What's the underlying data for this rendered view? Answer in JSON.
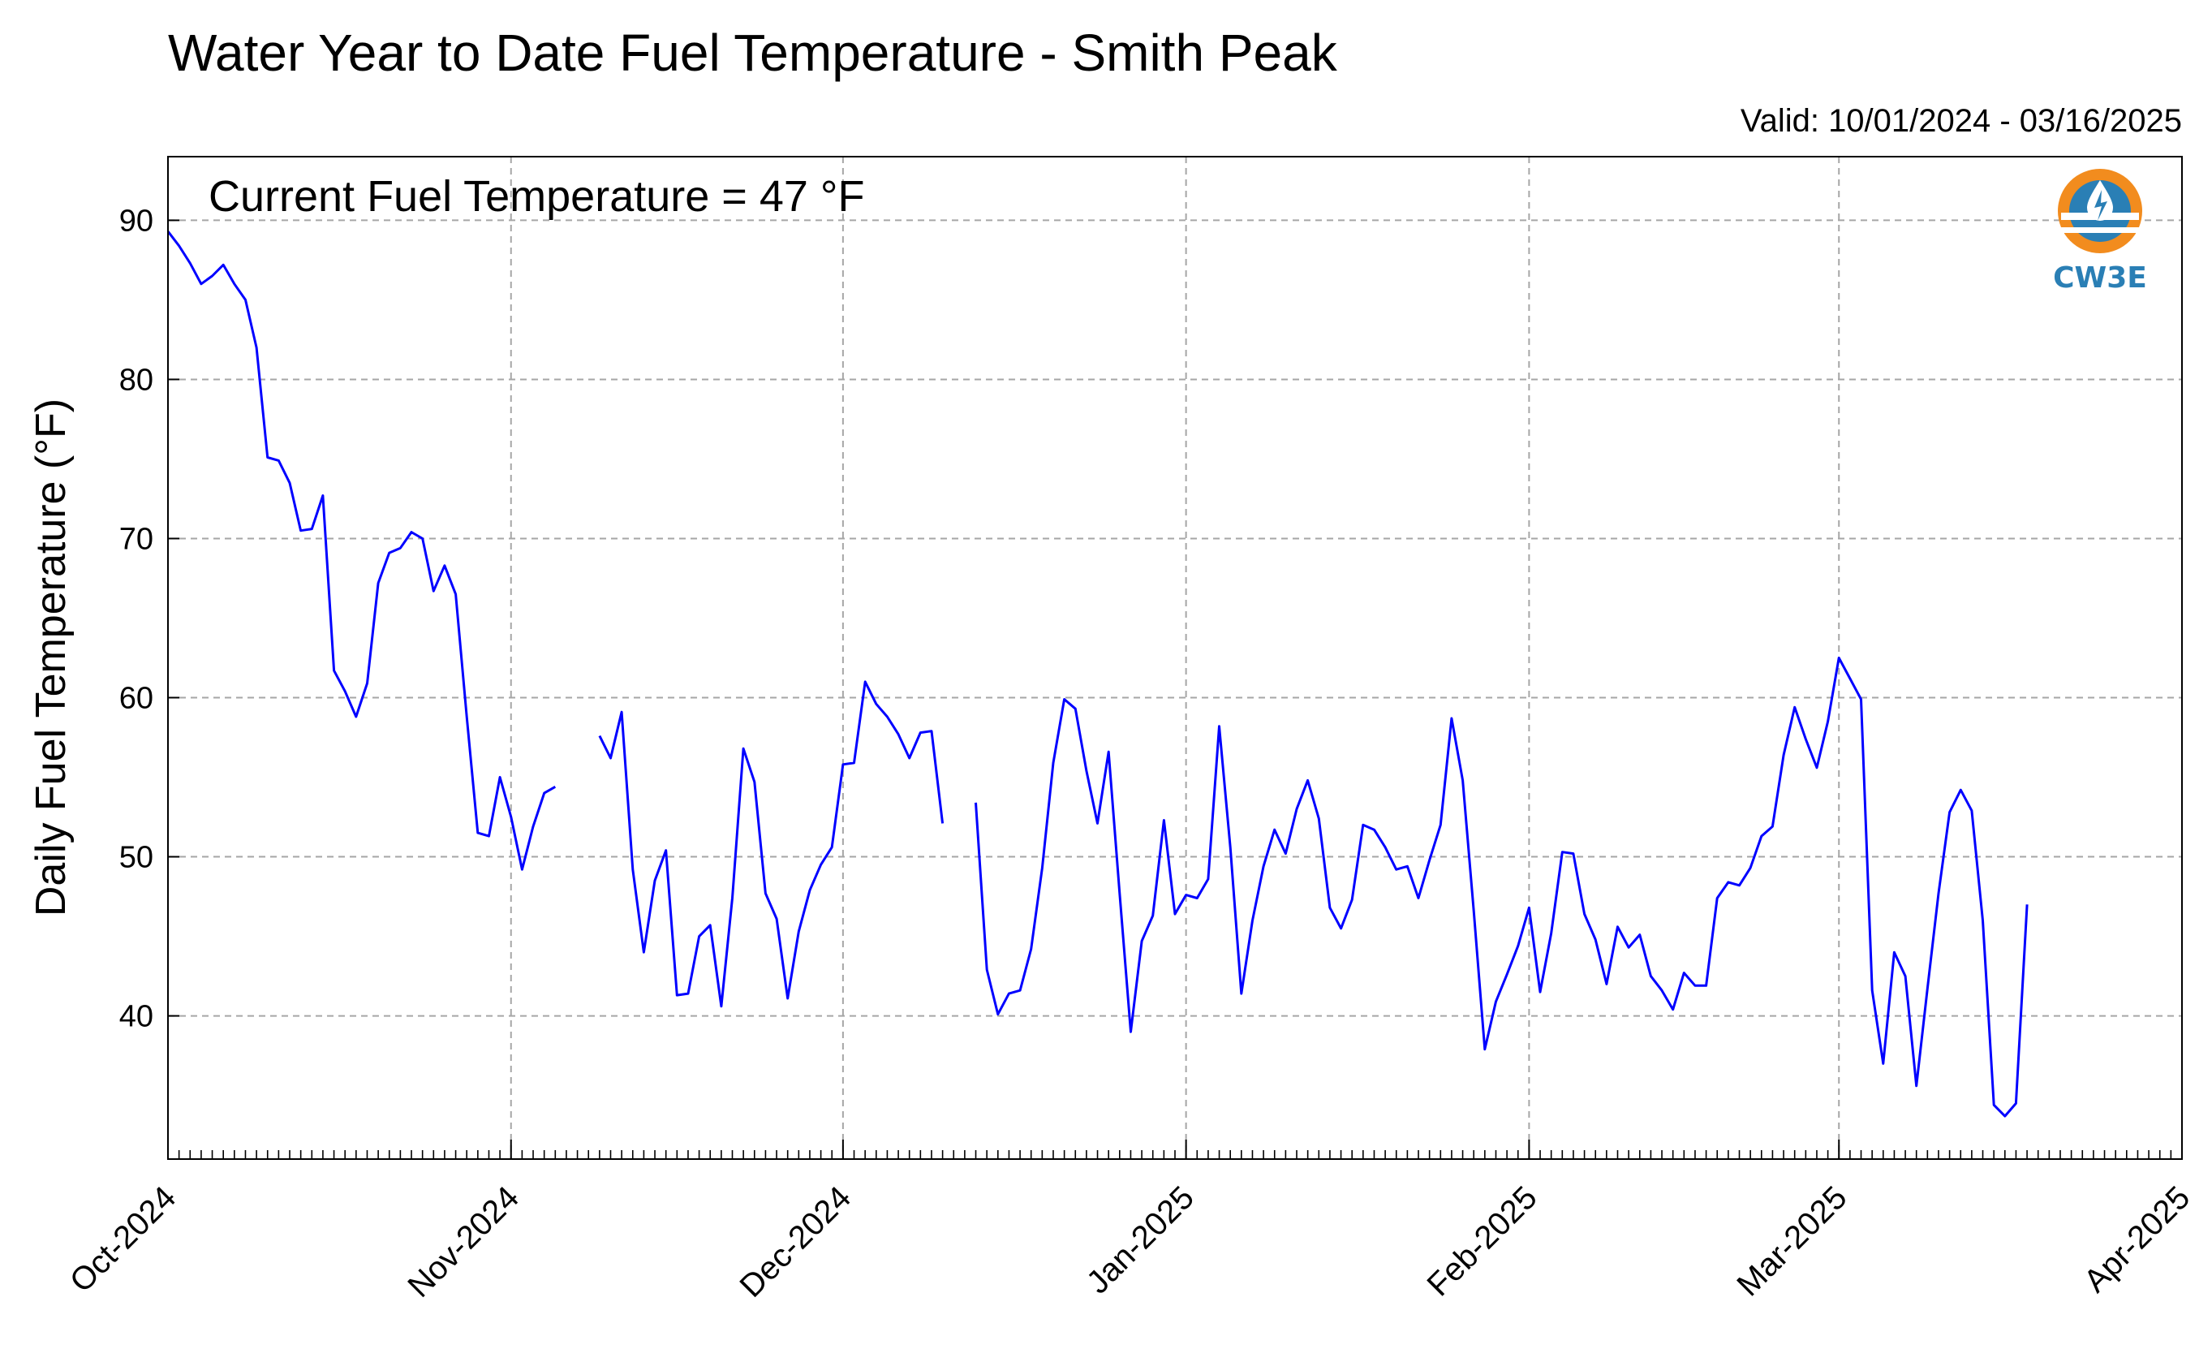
{
  "chart_data": {
    "type": "line",
    "title": "Water Year to Date Fuel Temperature - Smith Peak",
    "subtitle": "Valid: 10/01/2024 - 03/16/2025",
    "annotation": "Current Fuel Temperature = 47 °F",
    "ylabel": "Daily Fuel Temperature (°F)",
    "xlabel": "",
    "ylim": [
      31,
      94
    ],
    "xlim": [
      "2024-10-01",
      "2025-04-01"
    ],
    "yticks": [
      40,
      50,
      60,
      70,
      80,
      90
    ],
    "xtick_labels": [
      "Oct-2024",
      "Nov-2024",
      "Dec-2024",
      "Jan-2025",
      "Feb-2025",
      "Mar-2025",
      "Apr-2025"
    ],
    "xtick_dates": [
      "2024-10-01",
      "2024-11-01",
      "2024-12-01",
      "2025-01-01",
      "2025-02-01",
      "2025-03-01",
      "2025-04-01"
    ],
    "grid": true,
    "line_color": "#0000ff",
    "series": [
      {
        "start_date": "2024-10-01",
        "values": [
          89.3,
          88.4,
          87.3,
          86.0,
          86.5,
          87.2,
          86.0,
          85.0,
          82.0,
          75.1,
          74.9,
          73.5,
          70.5,
          70.6,
          72.7,
          61.7,
          60.4,
          58.8,
          60.9,
          67.2,
          69.1,
          69.4,
          70.4,
          70.0,
          66.7,
          68.3,
          66.5,
          58.8,
          51.5,
          51.3,
          55.0,
          52.5,
          49.2,
          51.9,
          54.0,
          54.4,
          null,
          null,
          null,
          57.6,
          56.2,
          59.1,
          49.2,
          44.0,
          48.5,
          50.4,
          41.3,
          41.4,
          45.0,
          45.7,
          40.6,
          47.4,
          56.8,
          54.7,
          47.7,
          46.1,
          41.1,
          45.3,
          47.9,
          49.5,
          50.6,
          55.8,
          55.9,
          61.0,
          59.6,
          58.8,
          57.7,
          56.2,
          57.8,
          57.9,
          52.1,
          null,
          null,
          53.4,
          42.9,
          40.1,
          41.4,
          41.6,
          44.2,
          49.3,
          55.9,
          59.9,
          59.3,
          55.4,
          52.1,
          56.6,
          47.7,
          39.0,
          44.7,
          46.3,
          52.3,
          46.4,
          47.6,
          47.4,
          48.6,
          58.2,
          50.6,
          41.4,
          46.0,
          49.4,
          51.7,
          50.2,
          53.0,
          54.8,
          52.4,
          46.8,
          45.5,
          47.3,
          52.0,
          51.7,
          50.6,
          49.2,
          49.4,
          47.4,
          49.8,
          52.0,
          58.7,
          54.8,
          46.6,
          37.9,
          40.9,
          42.6,
          44.4,
          46.8,
          41.5,
          45.2,
          50.3,
          50.2,
          46.4,
          44.8,
          42.0,
          45.6,
          44.3,
          45.1,
          42.5,
          41.6,
          40.4,
          42.7,
          41.9,
          41.9,
          47.4,
          48.4,
          48.2,
          49.3,
          51.3,
          51.9,
          56.4,
          59.4,
          57.4,
          55.6,
          58.5,
          62.5,
          61.2,
          59.9,
          41.6,
          37.0,
          44.0,
          42.5,
          35.6,
          41.7,
          47.7,
          52.8,
          54.2,
          52.9,
          46.0,
          34.4,
          33.7,
          34.5,
          47.0
        ]
      }
    ]
  },
  "logo": {
    "text": "CW3E",
    "colors": {
      "ring": "#f28c1e",
      "blue": "#2a7fb5"
    }
  }
}
